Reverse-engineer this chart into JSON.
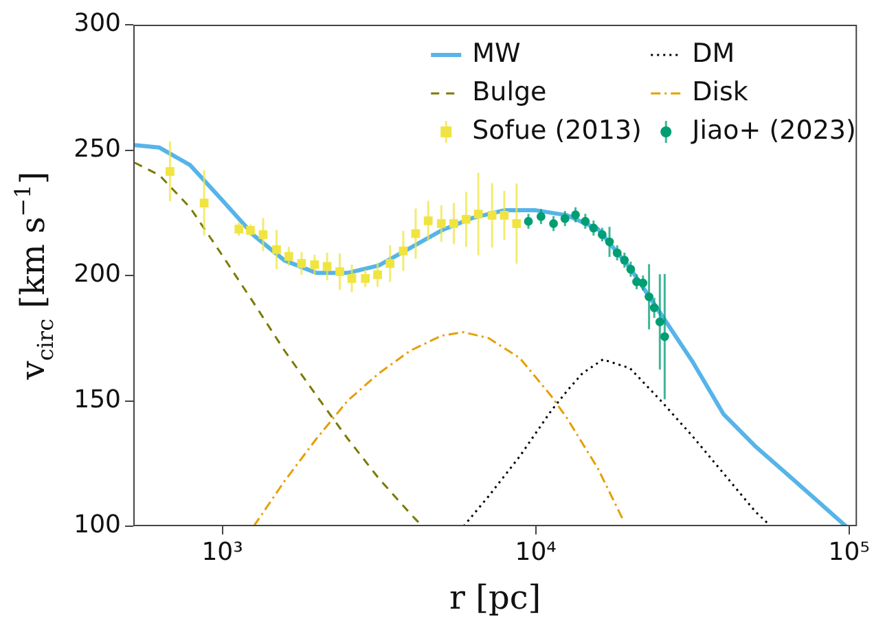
{
  "chart_data": {
    "type": "line",
    "xlabel": "r [pc]",
    "ylabel": "v$_{circ}$ [km s$^{−1}$]",
    "log": "x",
    "legend": "top right",
    "xlim": [
      520,
      106000
    ],
    "ylim": [
      100,
      300
    ],
    "xticks": [
      {
        "value": 1000,
        "label": "10³"
      },
      {
        "value": 10000,
        "label": "10⁴"
      },
      {
        "value": 100000,
        "label": "10⁵"
      }
    ],
    "yticks": [
      100,
      150,
      200,
      250,
      300
    ],
    "series": [
      {
        "name": "MW",
        "type": "line",
        "color": "#56b4e9",
        "line_style": "solid",
        "x": [
          525,
          630,
          790,
          1000,
          1260,
          1580,
          2000,
          2510,
          3160,
          3980,
          5010,
          6310,
          7940,
          10000,
          12600,
          15800,
          20000,
          25100,
          31600,
          39800,
          50100,
          63100,
          79400,
          97700
        ],
        "values": [
          252,
          251,
          244,
          230,
          216,
          206,
          201,
          201,
          204,
          211,
          218,
          223,
          226,
          226,
          224,
          218.5,
          203,
          184.6,
          165.8,
          144.6,
          132,
          121,
          110,
          100
        ]
      },
      {
        "name": "DM",
        "type": "line",
        "color": "#000000",
        "line_style": "dotted",
        "x": [
          5890,
          7080,
          8910,
          11200,
          12600,
          14100,
          16400,
          20000,
          25100,
          31600,
          39800,
          50100,
          56200
        ],
        "values": [
          100,
          112,
          128,
          146,
          154,
          161,
          166.5,
          163,
          150,
          136,
          121,
          106,
          100
        ]
      },
      {
        "name": "Bulge",
        "type": "line",
        "color": "#7a7a00",
        "line_style": "dashed",
        "x": [
          525,
          630,
          790,
          1000,
          1260,
          1580,
          2000,
          2510,
          3160,
          3980,
          4270
        ],
        "values": [
          245,
          240,
          227,
          208,
          189,
          170,
          152,
          135,
          119,
          105,
          101
        ]
      },
      {
        "name": "Disk",
        "type": "line",
        "color": "#e69f00",
        "line_style": "dashdot",
        "x": [
          1260,
          1580,
          2000,
          2510,
          3160,
          3980,
          5010,
          5890,
          7080,
          8910,
          11200,
          12600,
          15800,
          19100
        ],
        "values": [
          100,
          118,
          135,
          150,
          161,
          170,
          176,
          177.4,
          175,
          167,
          152,
          143,
          123,
          102
        ]
      },
      {
        "name": "Sofue (2013)",
        "type": "scatter",
        "marker": "square",
        "color": "#f0e442",
        "x": [
          681,
          875,
          1130,
          1230,
          1350,
          1490,
          1630,
          1790,
          1970,
          2160,
          2370,
          2590,
          2860,
          3130,
          3430,
          3780,
          4140,
          4540,
          5000,
          5480,
          6000,
          6560,
          7260,
          7940,
          8690
        ],
        "values": [
          241.5,
          228.9,
          218.5,
          218,
          216.3,
          210.3,
          207.6,
          204.8,
          204.3,
          203.6,
          201.5,
          198.8,
          198.8,
          200.3,
          204.8,
          209.8,
          216.7,
          221.8,
          220.7,
          220.7,
          222.4,
          224.5,
          224,
          224,
          220.7
        ],
        "errors": [
          11.9,
          13,
          2.7,
          2.3,
          6.6,
          7.9,
          3.8,
          4.6,
          4,
          5.5,
          7.3,
          5.5,
          3.5,
          4.8,
          7.3,
          8,
          10,
          8,
          7.3,
          8.2,
          11,
          16.4,
          12.8,
          9.8,
          16
        ]
      },
      {
        "name": "Jiao+ (2023)",
        "type": "scatter",
        "marker": "circle",
        "color": "#009e73",
        "x": [
          9480,
          10400,
          11400,
          12400,
          13400,
          14400,
          15300,
          16300,
          17200,
          18200,
          19200,
          20100,
          21000,
          22000,
          23000,
          23900,
          24900,
          25800
        ],
        "values": [
          221.6,
          223.5,
          220.7,
          222.7,
          224.2,
          221.6,
          218.9,
          216.3,
          213.4,
          209,
          206.1,
          202.5,
          197.5,
          197,
          191.5,
          187.1,
          181.5,
          175.6
        ],
        "errors": [
          3,
          3,
          3,
          3,
          3,
          3,
          3,
          2.7,
          6,
          3,
          3,
          3,
          3,
          3,
          13,
          4,
          19,
          25
        ]
      }
    ]
  }
}
